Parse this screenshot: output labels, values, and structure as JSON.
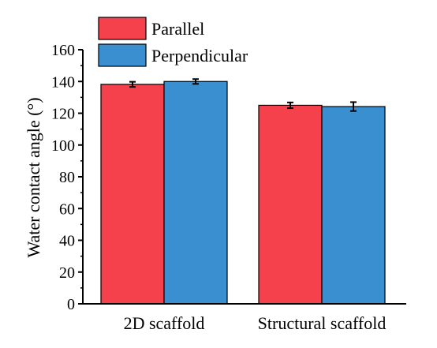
{
  "chart_data": {
    "type": "bar",
    "ylabel": "Water contact angle (°)",
    "xlabel": "",
    "ylim": [
      0,
      160
    ],
    "yticks": [
      0,
      20,
      40,
      60,
      80,
      100,
      120,
      140,
      160
    ],
    "categories": [
      "2D scaffold",
      "Structural scaffold"
    ],
    "series": [
      {
        "name": "Parallel",
        "color": "#f5414b",
        "values": [
          138.2,
          125.0
        ],
        "errors": [
          1.6,
          1.8
        ]
      },
      {
        "name": "Perpendicular",
        "color": "#3a8fd0",
        "values": [
          140.0,
          124.2
        ],
        "errors": [
          1.5,
          2.8
        ]
      }
    ],
    "legend_position": "top-left",
    "grid": false
  }
}
